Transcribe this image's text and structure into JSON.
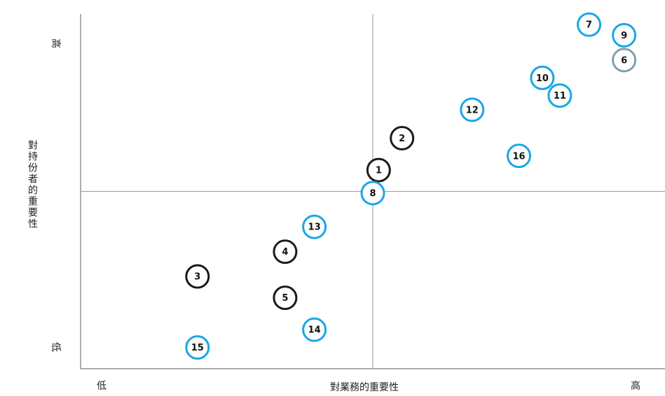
{
  "chart_data": {
    "type": "scatter",
    "title": "",
    "xlabel": "對業務的重要性",
    "ylabel": "對持份者的重要性",
    "x_low_label": "低",
    "x_high_label": "高",
    "y_low_label": "低",
    "y_high_label": "高",
    "xlim": [
      0,
      10
    ],
    "ylim": [
      0,
      10
    ],
    "quadrant_divider": {
      "x": 5,
      "y": 5
    },
    "grid": false,
    "legend": "none",
    "colors": {
      "black_group": "#1a1a1a",
      "blue_group": "#1aa6e6",
      "gray_group": "#7f9fb0"
    },
    "points": [
      {
        "label": "1",
        "x": 5.1,
        "y": 5.6,
        "group": "black_group"
      },
      {
        "label": "2",
        "x": 5.5,
        "y": 6.5,
        "group": "black_group"
      },
      {
        "label": "3",
        "x": 2.0,
        "y": 2.6,
        "group": "black_group"
      },
      {
        "label": "4",
        "x": 3.5,
        "y": 3.3,
        "group": "black_group"
      },
      {
        "label": "5",
        "x": 3.5,
        "y": 2.0,
        "group": "black_group"
      },
      {
        "label": "6",
        "x": 9.3,
        "y": 8.7,
        "group": "gray_group"
      },
      {
        "label": "7",
        "x": 8.7,
        "y": 9.7,
        "group": "blue_group"
      },
      {
        "label": "8",
        "x": 5.0,
        "y": 4.95,
        "group": "blue_group"
      },
      {
        "label": "9",
        "x": 9.3,
        "y": 9.4,
        "group": "blue_group"
      },
      {
        "label": "10",
        "x": 7.9,
        "y": 8.2,
        "group": "blue_group"
      },
      {
        "label": "11",
        "x": 8.2,
        "y": 7.7,
        "group": "blue_group"
      },
      {
        "label": "12",
        "x": 6.7,
        "y": 7.3,
        "group": "blue_group"
      },
      {
        "label": "13",
        "x": 4.0,
        "y": 4.0,
        "group": "blue_group"
      },
      {
        "label": "14",
        "x": 4.0,
        "y": 1.1,
        "group": "blue_group"
      },
      {
        "label": "15",
        "x": 2.0,
        "y": 0.6,
        "group": "blue_group"
      },
      {
        "label": "16",
        "x": 7.5,
        "y": 6.0,
        "group": "blue_group"
      }
    ]
  }
}
